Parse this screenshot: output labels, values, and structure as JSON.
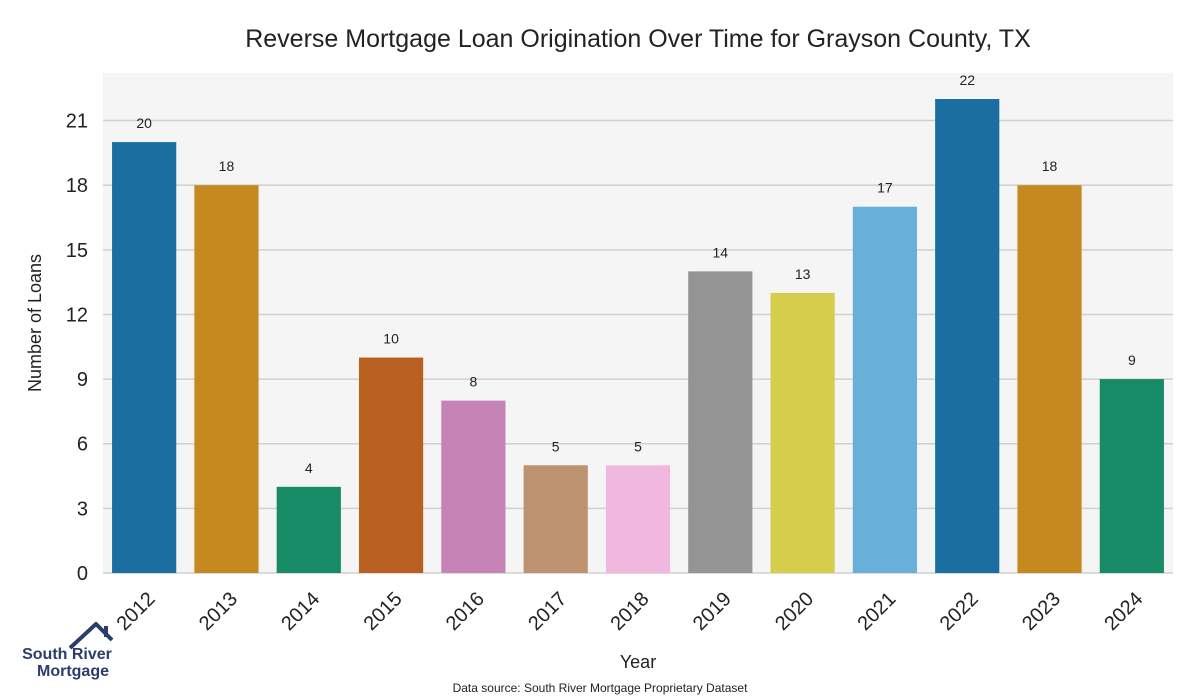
{
  "chart_data": {
    "type": "bar",
    "title": "Reverse Mortgage Loan Origination Over Time for Grayson County, TX",
    "xlabel": "Year",
    "ylabel": "Number of Loans",
    "categories": [
      "2012",
      "2013",
      "2014",
      "2015",
      "2016",
      "2017",
      "2018",
      "2019",
      "2020",
      "2021",
      "2022",
      "2023",
      "2024"
    ],
    "values": [
      20,
      18,
      4,
      10,
      8,
      5,
      5,
      14,
      13,
      17,
      22,
      18,
      9
    ],
    "colors": [
      "#1a6fa0",
      "#c5891f",
      "#178a66",
      "#b8601f",
      "#c583b6",
      "#bd9270",
      "#f1b8df",
      "#949494",
      "#d5cd4b",
      "#68b0da",
      "#1a6fa0",
      "#c5891f",
      "#178a66"
    ],
    "ylim": [
      0,
      22
    ],
    "yticks": [
      0,
      3,
      6,
      9,
      12,
      15,
      18,
      21
    ],
    "grid": true,
    "legend": "none",
    "source": "Data source: South River Mortgage Proprietary Dataset"
  },
  "logo": {
    "line1": "South River",
    "line2": "Mortgage"
  },
  "colors": {
    "plot_background": "#f5f5f5",
    "gridline": "#d0d0d0"
  }
}
